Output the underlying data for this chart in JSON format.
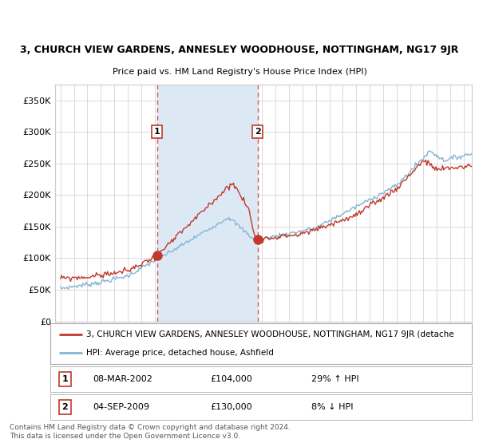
{
  "title": "3, CHURCH VIEW GARDENS, ANNESLEY WOODHOUSE, NOTTINGHAM, NG17 9JR",
  "subtitle": "Price paid vs. HM Land Registry's House Price Index (HPI)",
  "legend_line1": "3, CHURCH VIEW GARDENS, ANNESLEY WOODHOUSE, NOTTINGHAM, NG17 9JR (detache",
  "legend_line2": "HPI: Average price, detached house, Ashfield",
  "transaction1_date": "08-MAR-2002",
  "transaction1_price": "£104,000",
  "transaction1_hpi": "29% ↑ HPI",
  "transaction2_date": "04-SEP-2009",
  "transaction2_price": "£130,000",
  "transaction2_hpi": "8% ↓ HPI",
  "footer": "Contains HM Land Registry data © Crown copyright and database right 2024.\nThis data is licensed under the Open Government Licence v3.0.",
  "red_line_color": "#c0392b",
  "blue_line_color": "#85b5d4",
  "shaded_region_color": "#dce9f5",
  "dashed_line_color": "#e05050",
  "dot_color": "#c0392b",
  "grid_color": "#cccccc",
  "background_color": "#ffffff",
  "plot_bg_color": "#ffffff",
  "ylim": [
    0,
    375000
  ],
  "yticks": [
    0,
    50000,
    100000,
    150000,
    200000,
    250000,
    300000,
    350000
  ],
  "transaction1_x": 2002.18,
  "transaction1_y": 104000,
  "transaction2_x": 2009.67,
  "transaction2_y": 130000,
  "shade_x1": 2002.18,
  "shade_x2": 2009.67,
  "xlim_left": 1994.6,
  "xlim_right": 2025.6
}
